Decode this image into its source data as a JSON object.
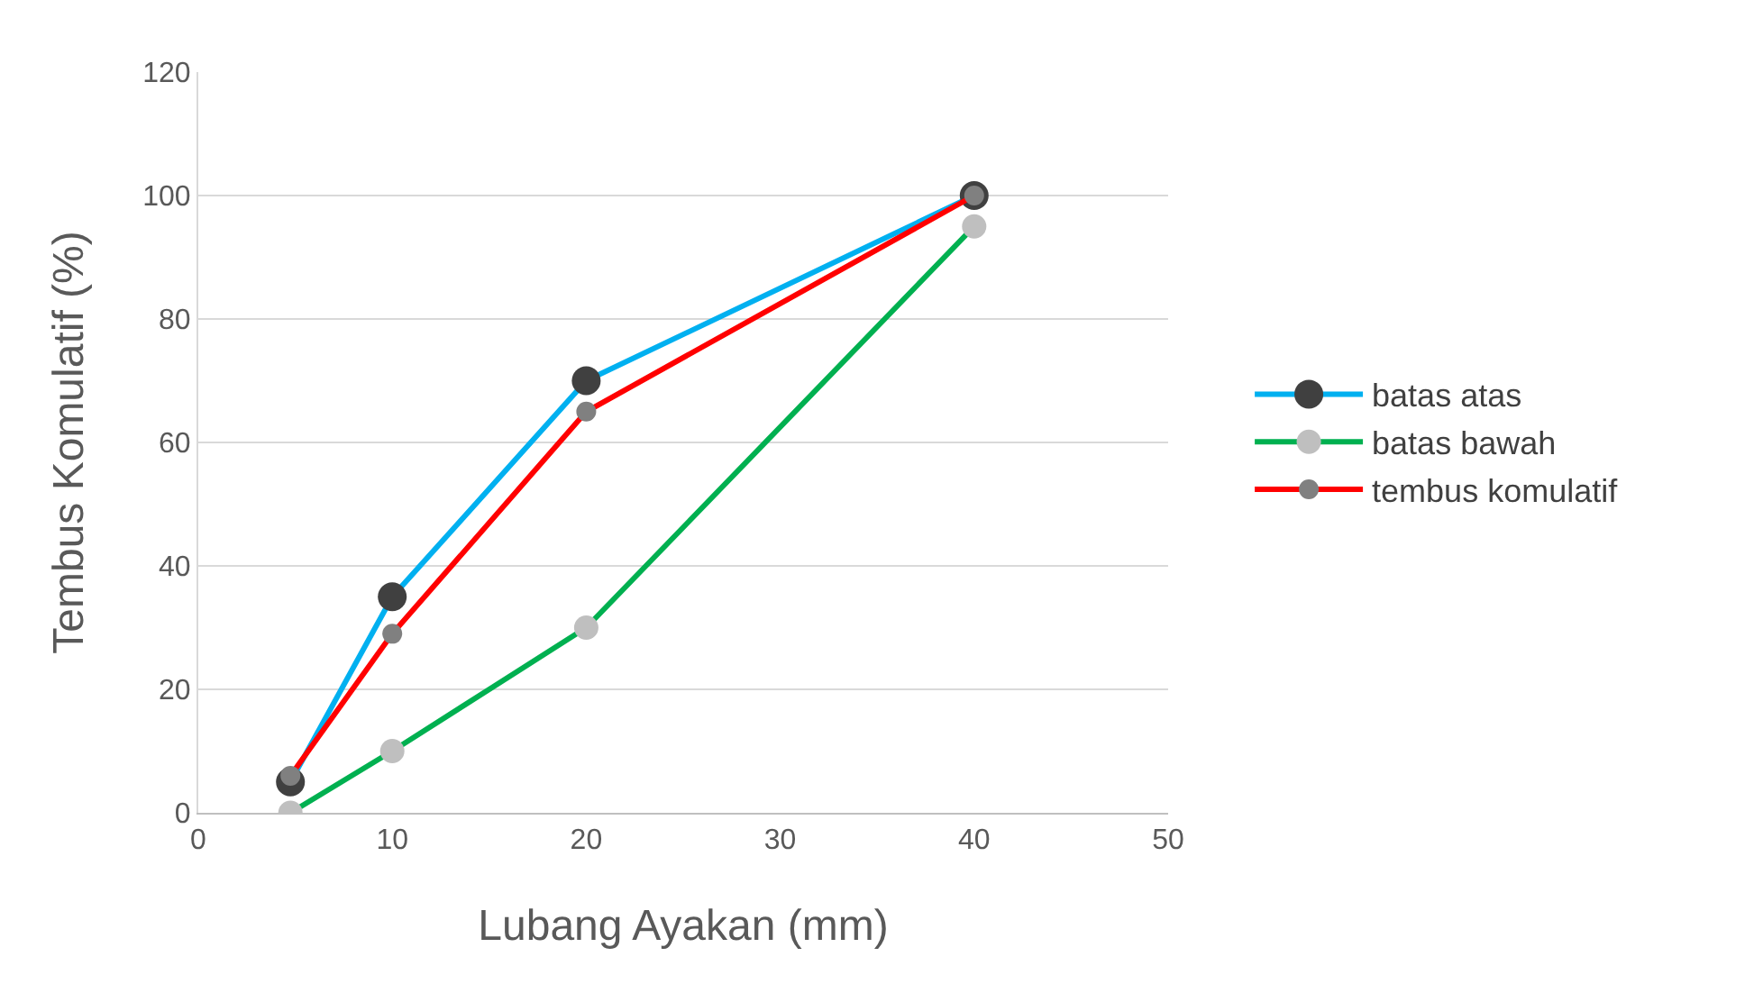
{
  "chart_data": {
    "type": "line",
    "xlabel": "Lubang Ayakan (mm)",
    "ylabel": "Tembus Komulatif (%)",
    "x": [
      4.75,
      10,
      20,
      40
    ],
    "series": [
      {
        "name": "batas atas",
        "color": "#00b0f0",
        "colors": [
          "#404040",
          "#404040",
          "#404040",
          "#404040"
        ],
        "values": [
          5,
          35,
          70,
          100
        ]
      },
      {
        "name": "batas bawah",
        "color": "#00b050",
        "colors": [
          "#bfbfbf",
          "#bfbfbf",
          "#bfbfbf",
          "#bfbfbf"
        ],
        "values": [
          0,
          10,
          30,
          95
        ]
      },
      {
        "name": "tembus komulatif",
        "color": "#ff0000",
        "colors": [
          "#808080",
          "#808080",
          "#808080",
          "#808080"
        ],
        "values": [
          6,
          29,
          65,
          100
        ]
      }
    ],
    "xlim": [
      0,
      50
    ],
    "xticks": [
      0,
      10,
      20,
      30,
      40,
      50
    ],
    "ylim": [
      0,
      120
    ],
    "yticks": [
      0,
      20,
      40,
      60,
      80,
      100,
      120
    ],
    "grid": "y",
    "legend": "right",
    "marker": "circle",
    "line_style": "solid"
  }
}
